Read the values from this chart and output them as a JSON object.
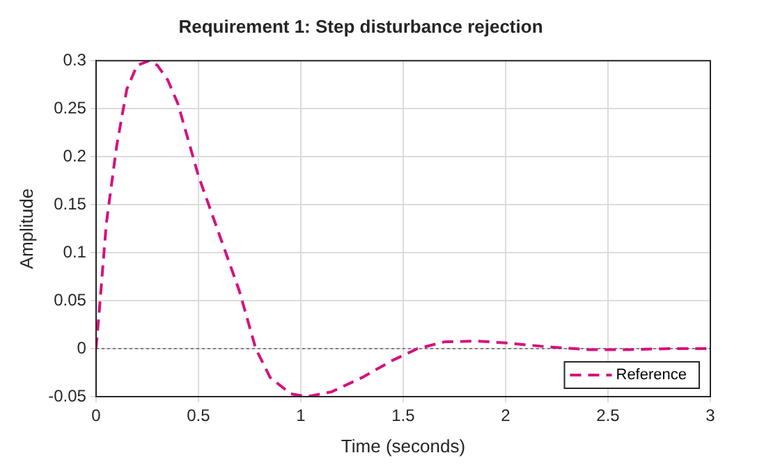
{
  "chart_data": {
    "type": "line",
    "title": "Requirement 1: Step disturbance rejection",
    "xlabel": "Time (seconds)",
    "ylabel": "Amplitude",
    "series": [
      {
        "name": "Reference",
        "color": "#d6117f",
        "line_style": "dashed",
        "marker": "none",
        "x": [
          0,
          0.02,
          0.05,
          0.1,
          0.15,
          0.2,
          0.26,
          0.3,
          0.35,
          0.4,
          0.5,
          0.6,
          0.7,
          0.78,
          0.85,
          0.95,
          1.03,
          1.15,
          1.3,
          1.45,
          1.57,
          1.7,
          1.85,
          2.0,
          2.2,
          2.4,
          2.6,
          2.8,
          3.0
        ],
        "values": [
          0,
          0.05,
          0.13,
          0.21,
          0.27,
          0.295,
          0.3,
          0.295,
          0.28,
          0.255,
          0.18,
          0.12,
          0.06,
          0,
          -0.03,
          -0.047,
          -0.05,
          -0.045,
          -0.03,
          -0.012,
          0,
          0.007,
          0.008,
          0.006,
          0.002,
          -0.001,
          -0.001,
          0,
          0
        ]
      }
    ],
    "xlim": [
      0,
      3
    ],
    "xticks": [
      0,
      0.5,
      1,
      1.5,
      2,
      2.5,
      3
    ],
    "ylim": [
      -0.05,
      0.3
    ],
    "yticks": [
      -0.05,
      0,
      0.05,
      0.1,
      0.15,
      0.2,
      0.25,
      0.3
    ],
    "ref_lines": [
      {
        "axis": "y",
        "value": 0,
        "color": "#808080",
        "line_style": "dotted"
      }
    ],
    "grid": true,
    "legend": "bottom right"
  }
}
